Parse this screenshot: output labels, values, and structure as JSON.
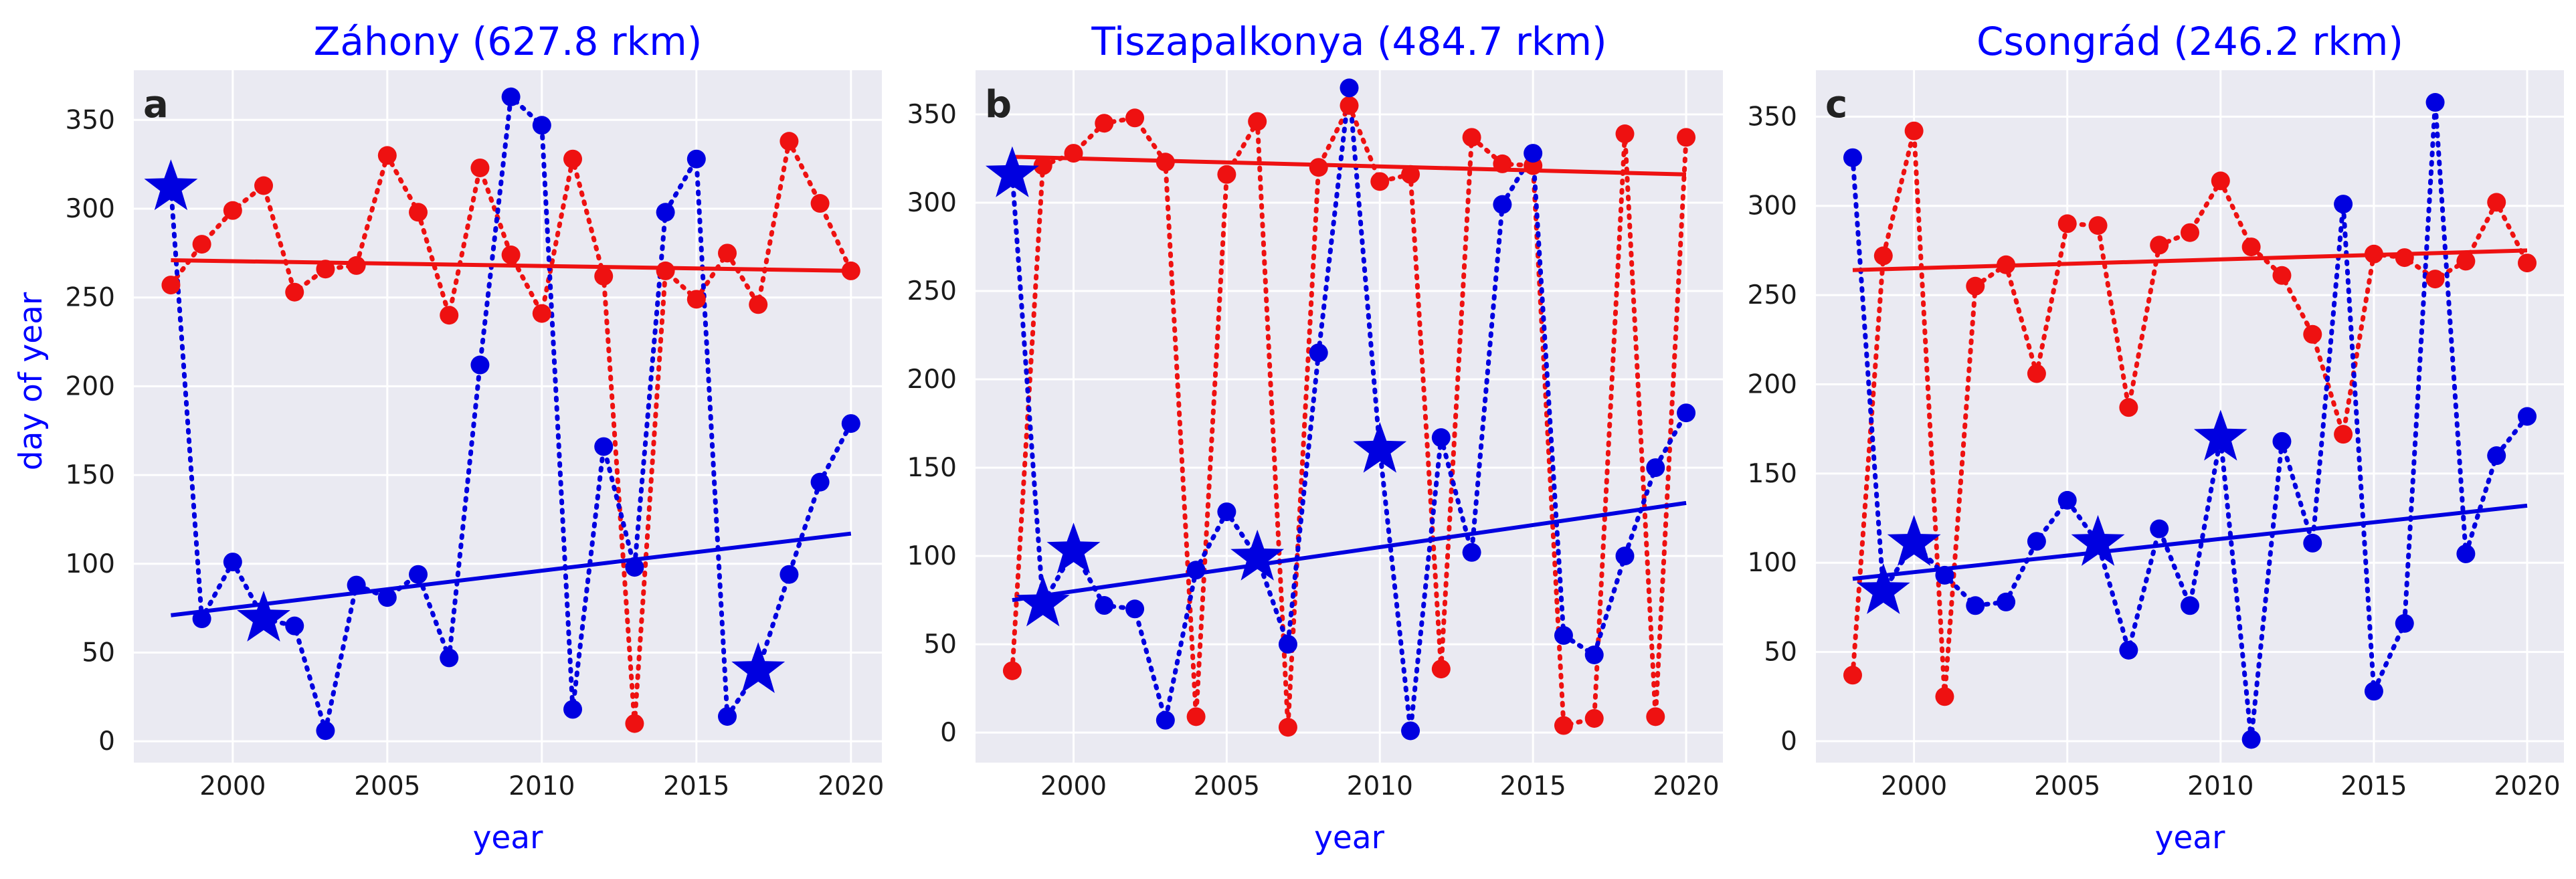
{
  "figure": {
    "ylabel": "day of year"
  },
  "colors": {
    "blue": "#0000e0",
    "red": "#ee1111",
    "panel_bg": "#eaeaf2",
    "grid": "#ffffff"
  },
  "chart_data": [
    {
      "type": "line",
      "panel": "a",
      "title": "Záhony (627.8 rkm)",
      "xlabel": "year",
      "ylabel": "day of year",
      "xlim": [
        1996.8,
        2021.0
      ],
      "ylim": [
        -12,
        378
      ],
      "xticks": [
        2000,
        2005,
        2010,
        2015,
        2020
      ],
      "yticks": [
        0,
        50,
        100,
        150,
        200,
        250,
        300,
        350
      ],
      "grid": true,
      "series": [
        {
          "name": "blue",
          "color": "blue",
          "x": [
            1998,
            1999,
            2000,
            2001,
            2002,
            2003,
            2004,
            2005,
            2006,
            2007,
            2008,
            2009,
            2010,
            2011,
            2012,
            2013,
            2014,
            2015,
            2016,
            2017,
            2018,
            2019,
            2020
          ],
          "values": [
            312,
            69,
            101,
            69,
            65,
            6,
            88,
            81,
            94,
            47,
            212,
            363,
            347,
            18,
            166,
            98,
            298,
            328,
            14,
            40,
            94,
            146,
            179
          ],
          "stars": [
            1998,
            2001,
            2017
          ]
        },
        {
          "name": "red",
          "color": "red",
          "x": [
            1998,
            1999,
            2000,
            2001,
            2002,
            2003,
            2004,
            2005,
            2006,
            2007,
            2008,
            2009,
            2010,
            2011,
            2012,
            2013,
            2014,
            2015,
            2016,
            2017,
            2018,
            2019,
            2020
          ],
          "values": [
            257,
            280,
            299,
            313,
            253,
            266,
            268,
            330,
            298,
            240,
            323,
            274,
            241,
            328,
            262,
            10,
            265,
            249,
            275,
            246,
            338,
            303,
            265
          ],
          "stars": []
        }
      ],
      "trends": [
        {
          "color": "blue",
          "x": [
            1998,
            2020
          ],
          "y": [
            71,
            117
          ]
        },
        {
          "color": "red",
          "x": [
            1998,
            2020
          ],
          "y": [
            271,
            265
          ]
        }
      ]
    },
    {
      "type": "line",
      "panel": "b",
      "title": "Tiszapalkonya (484.7 rkm)",
      "xlabel": "year",
      "ylabel": "",
      "xlim": [
        1996.8,
        2021.2
      ],
      "ylim": [
        -17,
        375
      ],
      "xticks": [
        2000,
        2005,
        2010,
        2015,
        2020
      ],
      "yticks": [
        0,
        50,
        100,
        150,
        200,
        250,
        300,
        350
      ],
      "grid": true,
      "series": [
        {
          "name": "blue",
          "color": "blue",
          "x": [
            1998,
            1999,
            2000,
            2001,
            2002,
            2003,
            2004,
            2005,
            2006,
            2007,
            2008,
            2009,
            2010,
            2011,
            2012,
            2013,
            2014,
            2015,
            2016,
            2017,
            2018,
            2019,
            2020
          ],
          "values": [
            316,
            73,
            103,
            72,
            70,
            7,
            92,
            125,
            99,
            50,
            215,
            365,
            160,
            1,
            167,
            102,
            299,
            328,
            55,
            44,
            100,
            150,
            181
          ],
          "stars": [
            1998,
            1999,
            2000,
            2006,
            2010
          ]
        },
        {
          "name": "red",
          "color": "red",
          "x": [
            1998,
            1999,
            2000,
            2001,
            2002,
            2003,
            2004,
            2005,
            2006,
            2007,
            2008,
            2009,
            2010,
            2011,
            2012,
            2013,
            2014,
            2015,
            2016,
            2017,
            2018,
            2019,
            2020
          ],
          "values": [
            35,
            321,
            328,
            345,
            348,
            323,
            9,
            316,
            346,
            3,
            320,
            355,
            312,
            316,
            36,
            337,
            322,
            321,
            4,
            8,
            339,
            9,
            337
          ],
          "stars": []
        }
      ],
      "trends": [
        {
          "color": "blue",
          "x": [
            1998,
            2020
          ],
          "y": [
            75,
            130
          ]
        },
        {
          "color": "red",
          "x": [
            1998,
            2020
          ],
          "y": [
            326,
            316
          ]
        }
      ]
    },
    {
      "type": "line",
      "panel": "c",
      "title": "Csongrád (246.2 rkm)",
      "xlabel": "year",
      "ylabel": "",
      "xlim": [
        1996.8,
        2021.2
      ],
      "ylim": [
        -12,
        376
      ],
      "xticks": [
        2000,
        2005,
        2010,
        2015,
        2020
      ],
      "yticks": [
        0,
        50,
        100,
        150,
        200,
        250,
        300,
        350
      ],
      "grid": true,
      "series": [
        {
          "name": "blue",
          "color": "blue",
          "x": [
            1998,
            1999,
            2000,
            2001,
            2002,
            2003,
            2004,
            2005,
            2006,
            2007,
            2008,
            2009,
            2010,
            2011,
            2012,
            2013,
            2014,
            2015,
            2016,
            2017,
            2018,
            2019,
            2020
          ],
          "values": [
            327,
            84,
            111,
            93,
            76,
            78,
            112,
            135,
            111,
            51,
            119,
            76,
            170,
            1,
            168,
            111,
            301,
            28,
            66,
            358,
            105,
            160,
            182
          ],
          "stars": [
            1999,
            2000,
            2006,
            2010
          ]
        },
        {
          "name": "red",
          "color": "red",
          "x": [
            1998,
            1999,
            2000,
            2001,
            2002,
            2003,
            2004,
            2005,
            2006,
            2007,
            2008,
            2009,
            2010,
            2011,
            2012,
            2013,
            2014,
            2015,
            2016,
            2017,
            2018,
            2019,
            2020
          ],
          "values": [
            37,
            272,
            342,
            25,
            255,
            267,
            206,
            290,
            289,
            187,
            278,
            285,
            314,
            277,
            261,
            228,
            172,
            273,
            271,
            259,
            269,
            302,
            268
          ],
          "stars": []
        }
      ],
      "trends": [
        {
          "color": "blue",
          "x": [
            1998,
            2020
          ],
          "y": [
            91,
            132
          ]
        },
        {
          "color": "red",
          "x": [
            1998,
            2020
          ],
          "y": [
            264,
            275
          ]
        }
      ]
    }
  ]
}
